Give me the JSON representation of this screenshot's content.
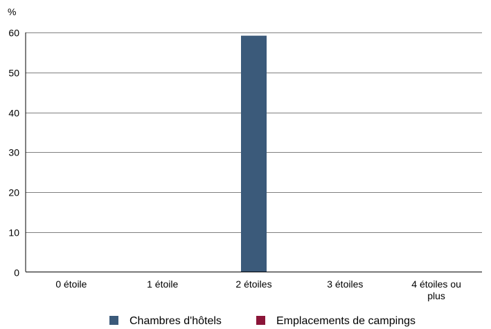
{
  "chart_data": {
    "type": "bar",
    "unit_label": "%",
    "categories": [
      [
        "0 étoile"
      ],
      [
        "1 étoile"
      ],
      [
        "2 étoiles"
      ],
      [
        "3 étoiles"
      ],
      [
        "4 étoiles ou",
        "plus"
      ]
    ],
    "series": [
      {
        "name": "Chambres d'hôtels",
        "color": "#3b5a7a",
        "values": [
          0,
          0,
          59.2,
          0,
          0
        ]
      },
      {
        "name": "Emplacements de campings",
        "color": "#8b1538",
        "values": [
          0,
          0,
          0,
          0,
          0
        ]
      }
    ],
    "ylim": [
      0,
      60
    ],
    "yticks": [
      0,
      10,
      20,
      30,
      40,
      50,
      60
    ],
    "grid": true,
    "legend_position": "bottom"
  }
}
